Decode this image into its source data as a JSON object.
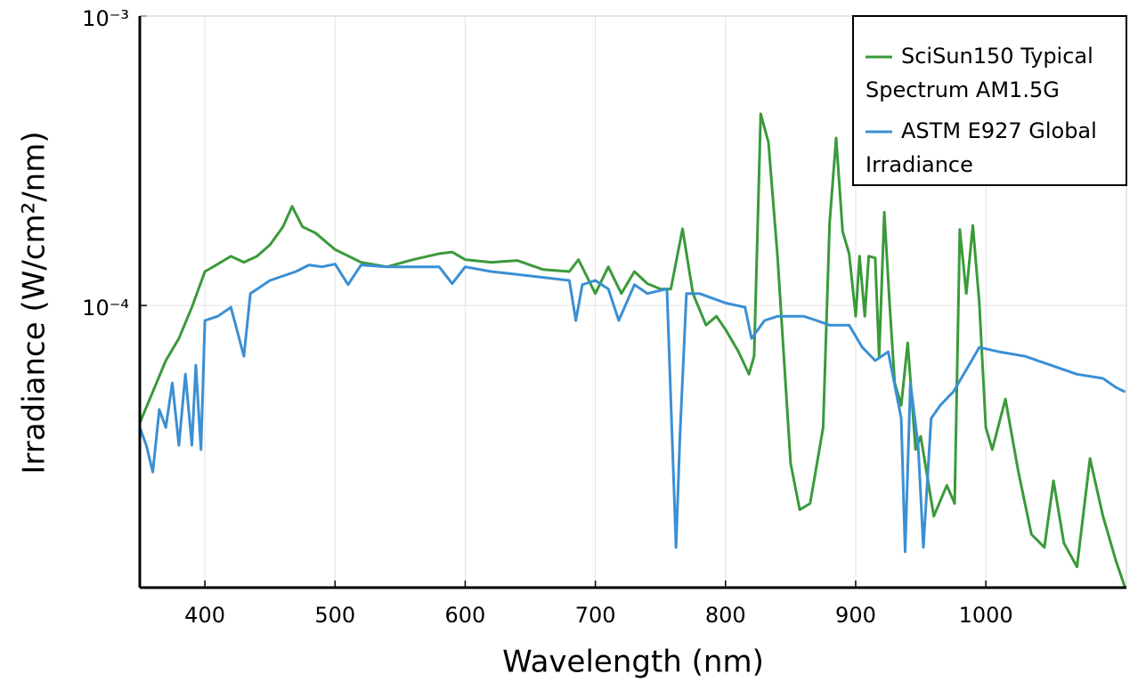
{
  "chart_data": {
    "type": "line",
    "x_label": "Wavelength (nm)",
    "y_label": "Irradiance (W/cm²/nm)",
    "xlim": [
      350,
      1108
    ],
    "xticks": [
      400,
      500,
      600,
      700,
      800,
      900,
      1000
    ],
    "ylim": [
      1.06e-05,
      0.001
    ],
    "yticks": [
      {
        "value": 0.001,
        "label": "10⁻³"
      },
      {
        "value": 0.0001,
        "label": "10⁻⁴"
      }
    ],
    "log_y": true,
    "grid": true,
    "legend": "upper right",
    "series": [
      {
        "name": "SciSun150 Typical Spectrum AM1.5G",
        "color": "#3a9a3a",
        "x": [
          350,
          360,
          370,
          380,
          390,
          400,
          410,
          420,
          430,
          440,
          450,
          460,
          467,
          475,
          485,
          500,
          520,
          540,
          560,
          580,
          590,
          600,
          620,
          640,
          660,
          680,
          687,
          695,
          700,
          710,
          720,
          730,
          740,
          750,
          758,
          767,
          775,
          785,
          793,
          800,
          810,
          818,
          822,
          827,
          833,
          840,
          850,
          857,
          865,
          875,
          880,
          885,
          890,
          895,
          900,
          903,
          907,
          910,
          915,
          918,
          922,
          926,
          930,
          935,
          940,
          946,
          950,
          960,
          970,
          976,
          980,
          985,
          990,
          995,
          1000,
          1005,
          1015,
          1025,
          1035,
          1045,
          1052,
          1060,
          1070,
          1080,
          1090,
          1100,
          1107
        ],
        "values": [
          3.93e-05,
          5.03e-05,
          6.45e-05,
          7.69e-05,
          9.86e-05,
          0.000131,
          0.000139,
          0.000148,
          0.000141,
          0.000148,
          0.000162,
          0.000187,
          0.00022,
          0.000187,
          0.000178,
          0.000156,
          0.000141,
          0.000136,
          0.000144,
          0.000151,
          0.000153,
          0.000144,
          0.000141,
          0.000143,
          0.000133,
          0.000131,
          0.000144,
          0.000122,
          0.00011,
          0.000136,
          0.00011,
          0.000131,
          0.000119,
          0.000114,
          0.000114,
          0.000184,
          0.00011,
          8.55e-05,
          9.18e-05,
          8.26e-05,
          6.92e-05,
          5.79e-05,
          6.68e-05,
          0.000459,
          0.000366,
          0.000146,
          2.85e-05,
          1.97e-05,
          2.07e-05,
          3.79e-05,
          0.000193,
          0.000379,
          0.00018,
          0.000151,
          9.18e-05,
          0.000148,
          9.18e-05,
          0.000148,
          0.000146,
          6.68e-05,
          0.00021,
          0.000102,
          5.4e-05,
          4.52e-05,
          7.43e-05,
          3.18e-05,
          3.53e-05,
          1.87e-05,
          2.39e-05,
          2.07e-05,
          0.000183,
          0.00011,
          0.000189,
          0.000102,
          3.79e-05,
          3.18e-05,
          4.75e-05,
          2.66e-05,
          1.62e-05,
          1.46e-05,
          2.48e-05,
          1.51e-05,
          1.25e-05,
          2.96e-05,
          1.87e-05,
          1.31e-05,
          1.06e-05
        ]
      },
      {
        "name": "ASTM E927 Global Irradiance",
        "color": "#3b8fd4",
        "x": [
          350,
          355,
          360,
          365,
          370,
          375,
          380,
          385,
          390,
          393,
          397,
          400,
          410,
          420,
          430,
          435,
          450,
          470,
          480,
          490,
          500,
          510,
          520,
          540,
          560,
          580,
          590,
          600,
          620,
          640,
          660,
          680,
          685,
          690,
          700,
          710,
          718,
          730,
          740,
          755,
          762,
          765,
          770,
          780,
          800,
          815,
          820,
          830,
          840,
          850,
          860,
          870,
          880,
          895,
          905,
          915,
          925,
          935,
          938,
          942,
          948,
          952,
          958,
          965,
          975,
          985,
          995,
          1010,
          1030,
          1050,
          1070,
          1090,
          1100,
          1107
        ],
        "values": [
          3.79e-05,
          3.29e-05,
          2.66e-05,
          4.37e-05,
          3.79e-05,
          5.4e-05,
          3.29e-05,
          5.79e-05,
          3.29e-05,
          6.22e-05,
          3.18e-05,
          8.87e-05,
          9.18e-05,
          9.86e-05,
          6.68e-05,
          0.00011,
          0.000122,
          0.000131,
          0.000138,
          0.000136,
          0.000139,
          0.000118,
          0.000138,
          0.000136,
          0.000136,
          0.000136,
          0.000119,
          0.000136,
          0.000131,
          0.000128,
          0.000125,
          0.000122,
          8.87e-05,
          0.000118,
          0.000122,
          0.000114,
          8.87e-05,
          0.000118,
          0.00011,
          0.000114,
          1.46e-05,
          3.53e-05,
          0.00011,
          0.00011,
          0.000102,
          9.86e-05,
          7.69e-05,
          8.87e-05,
          9.18e-05,
          9.18e-05,
          9.18e-05,
          8.87e-05,
          8.55e-05,
          8.55e-05,
          7.17e-05,
          6.45e-05,
          6.92e-05,
          4.07e-05,
          1.41e-05,
          5.4e-05,
          3.29e-05,
          1.46e-05,
          4.07e-05,
          4.52e-05,
          5.03e-05,
          6e-05,
          7.17e-05,
          6.92e-05,
          6.68e-05,
          6.22e-05,
          5.79e-05,
          5.6e-05,
          5.21e-05,
          5.03e-05
        ]
      }
    ]
  }
}
